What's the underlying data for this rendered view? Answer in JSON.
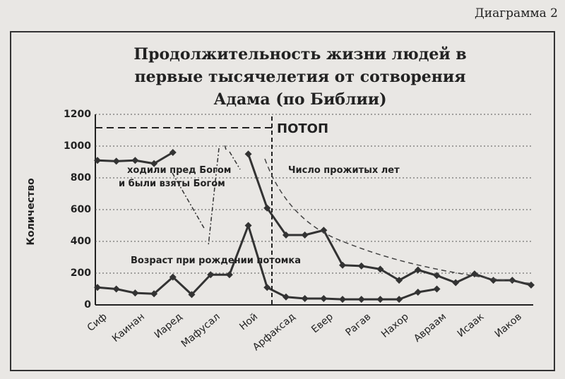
{
  "chart_data": {
    "type": "line",
    "title": [
      "Продолжительность жизни людей в",
      "первые тысячелетия от сотворения",
      "Адама (по Библии)"
    ],
    "caption": "Диаграмма 2",
    "y_label": "Количество",
    "categories": [
      "Сиф",
      null,
      "Каинан",
      null,
      "Иаред",
      null,
      "Мафусал",
      null,
      "Ной",
      null,
      "Арфаксад",
      null,
      "Евер",
      null,
      "Рагав",
      null,
      "Нахор",
      null,
      "Авраам",
      null,
      "Исаак",
      null,
      "Иаков",
      null
    ],
    "series": [
      {
        "name": "Число прожитых лет",
        "color": "#333333",
        "values": [
          910,
          905,
          910,
          890,
          960,
          null,
          null,
          null,
          950,
          610,
          440,
          440,
          470,
          250,
          245,
          225,
          155,
          220,
          185,
          140,
          195,
          155,
          155,
          125
        ]
      },
      {
        "name": "Возраст при рождении потомка",
        "color": "#333333",
        "values": [
          110,
          100,
          75,
          70,
          175,
          65,
          190,
          190,
          500,
          110,
          50,
          40,
          40,
          35,
          35,
          35,
          35,
          80,
          100,
          null,
          null,
          null,
          null,
          null
        ]
      }
    ],
    "ylim": [
      0,
      1200
    ],
    "yticks": [
      0,
      200,
      400,
      600,
      800,
      1000,
      1200
    ],
    "grid": true,
    "annotations": [
      "ПОТОП",
      "ходили пред Богом",
      "и были взяты Богом"
    ]
  }
}
